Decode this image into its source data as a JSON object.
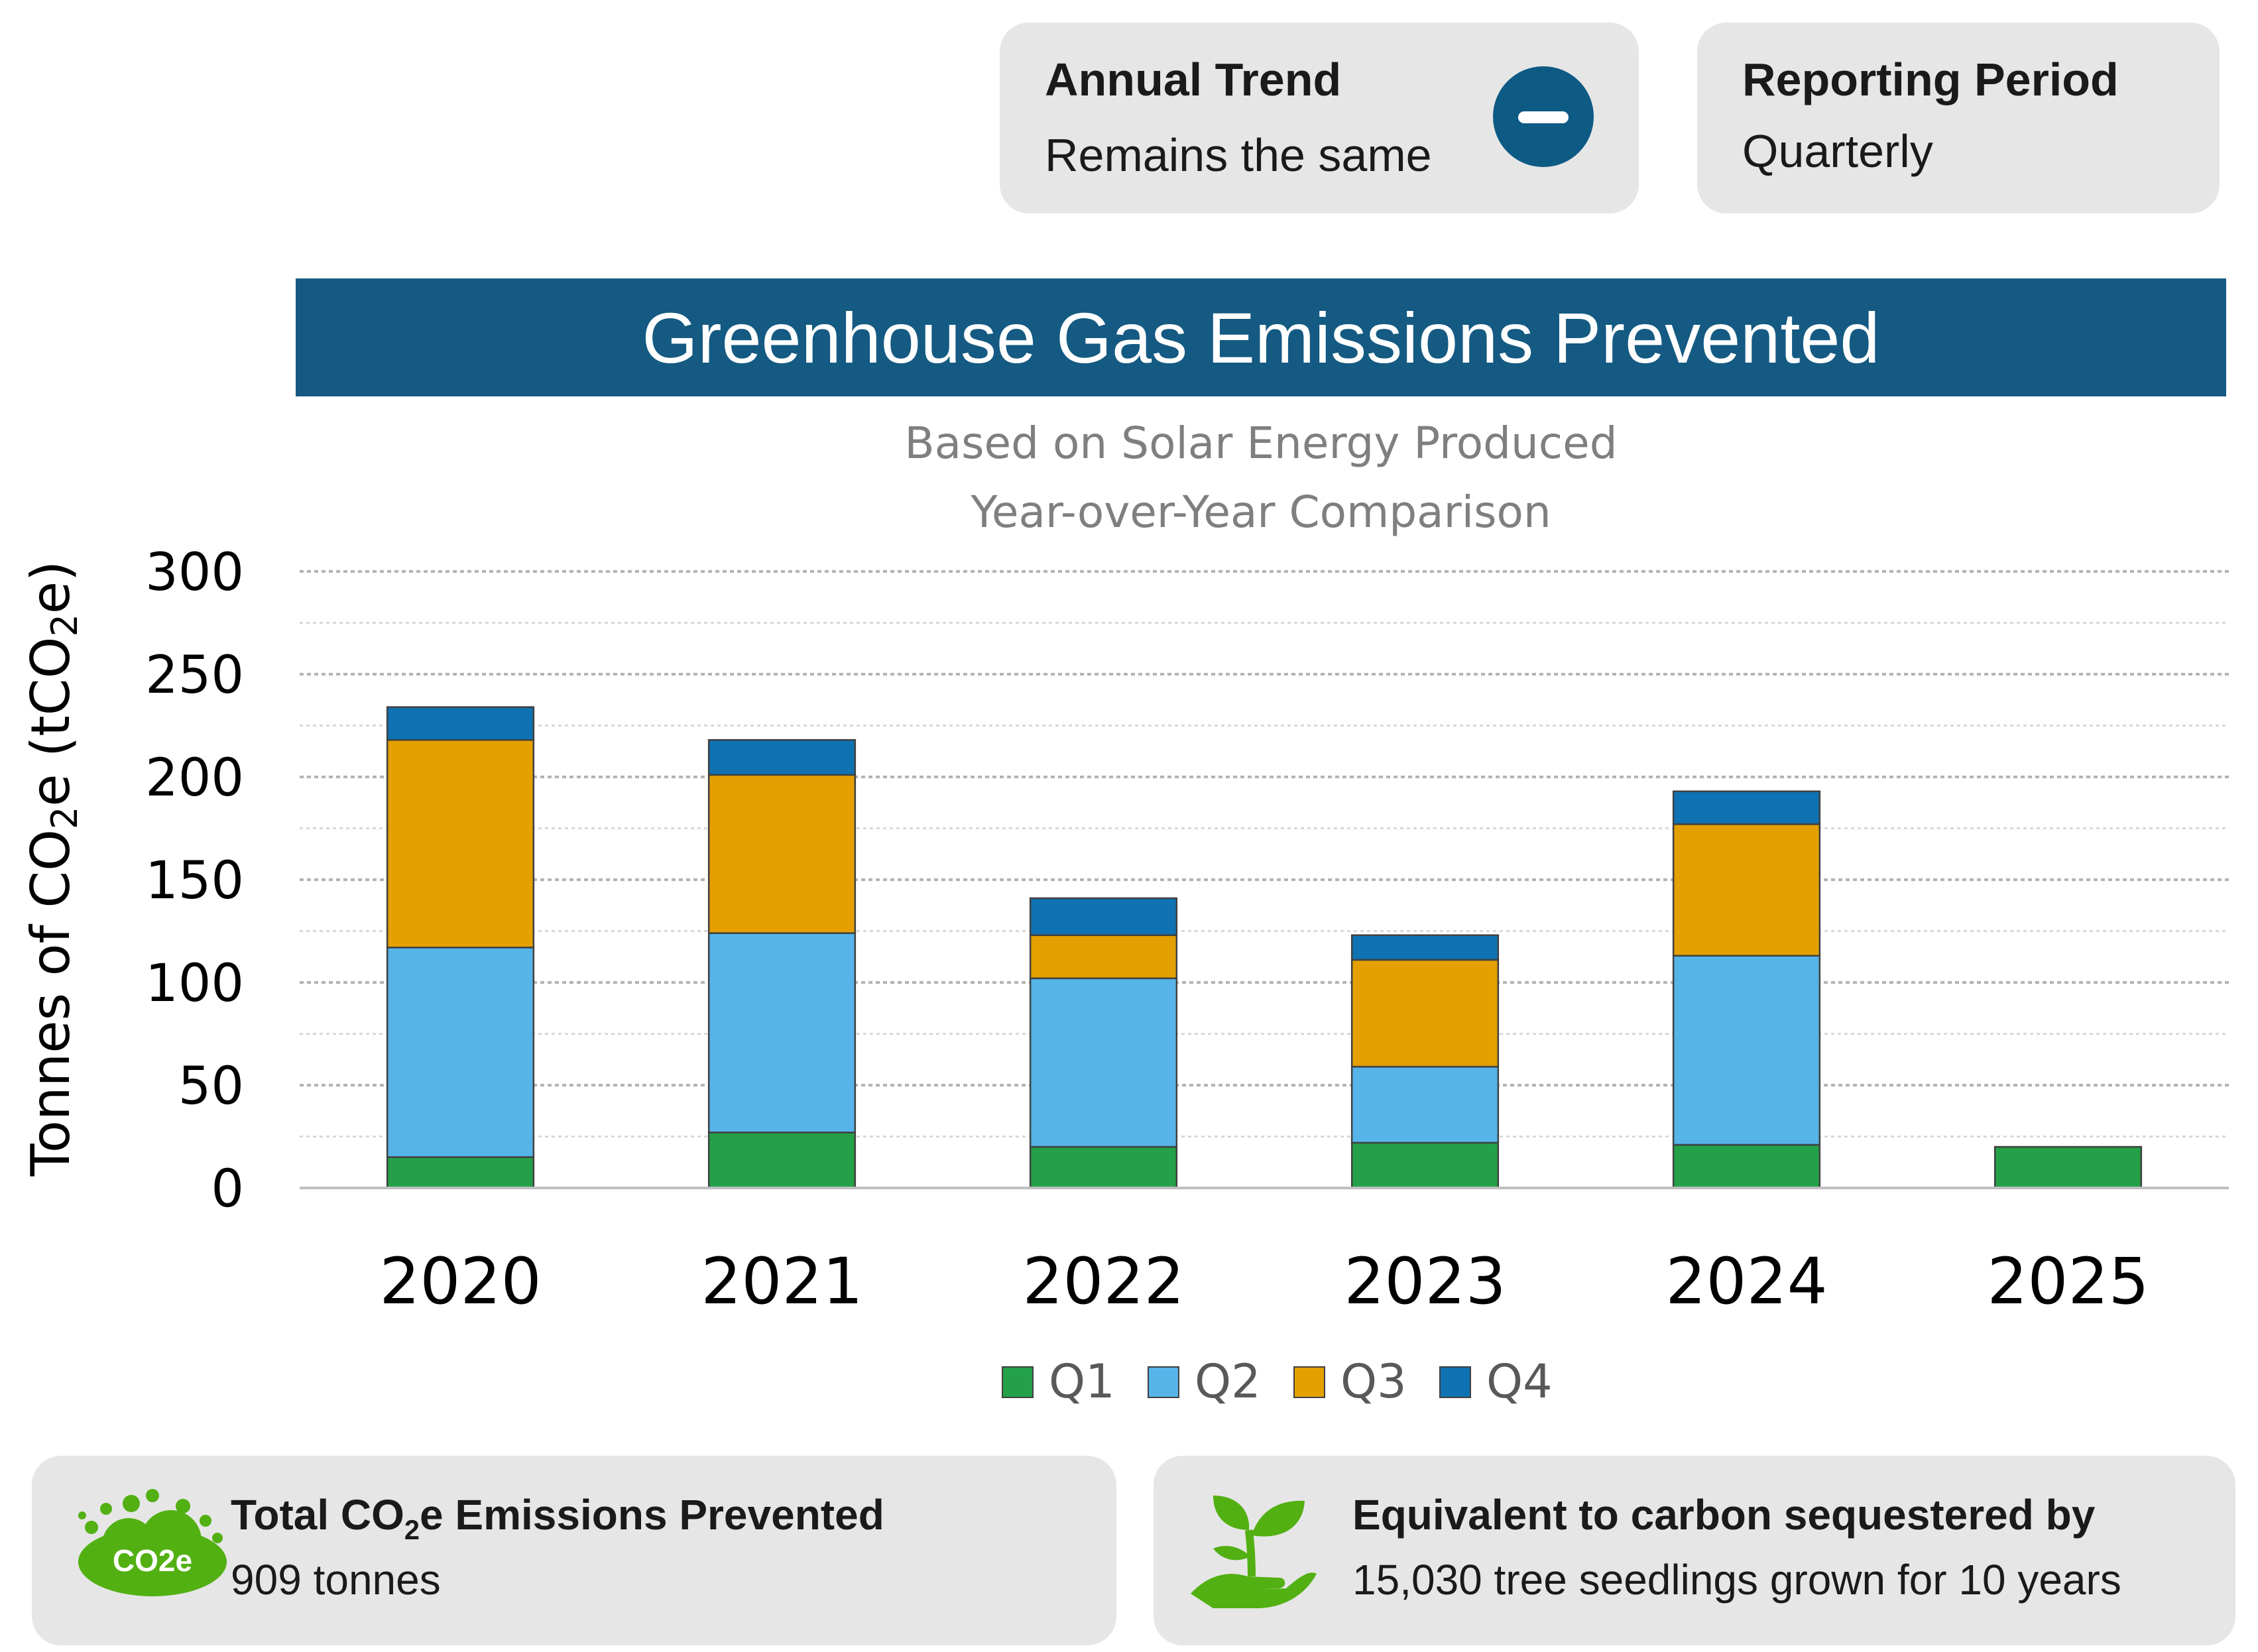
{
  "trend_card": {
    "label": "Annual Trend",
    "value": "Remains the same",
    "icon": "minus-circle-icon",
    "icon_color": "#0d5a84"
  },
  "period_card": {
    "label": "Reporting Period",
    "value": "Quarterly"
  },
  "total_card": {
    "label_pre": "Total CO",
    "label_sub": "2",
    "label_post": "e Emissions Prevented",
    "value": "909 tonnes",
    "icon": "co2e-cloud-icon",
    "icon_text": "CO2e",
    "icon_color": "#52b012"
  },
  "equiv_card": {
    "label": "Equivalent to carbon sequestered by",
    "value": "15,030 tree seedlings grown for 10 years",
    "icon": "seedling-hand-icon",
    "icon_color": "#52b012"
  },
  "colors": {
    "banner": "#145a82",
    "Q1": "#24a148",
    "Q2": "#56b4e9",
    "Q3": "#e4a000",
    "Q4": "#0f72b2"
  },
  "chart_data": {
    "type": "bar",
    "stacked": true,
    "title": "Greenhouse Gas Emissions Prevented",
    "subtitle": [
      "Based on Solar Energy Produced",
      "Year-over-Year Comparison"
    ],
    "ylabel": {
      "pre": "Tonnes of CO",
      "sub1": "2",
      "mid": "e (tCO",
      "sub2": "2",
      "post": "e)"
    },
    "xlabel": "",
    "categories": [
      "2020",
      "2021",
      "2022",
      "2023",
      "2024",
      "2025"
    ],
    "ylim": [
      0,
      300
    ],
    "yticks": [
      0,
      50,
      100,
      150,
      200,
      250,
      300
    ],
    "grid": true,
    "legend_position": "bottom",
    "series": [
      {
        "name": "Q1",
        "values": [
          15,
          27,
          20,
          22,
          21,
          20
        ]
      },
      {
        "name": "Q2",
        "values": [
          102,
          97,
          82,
          37,
          92,
          0
        ]
      },
      {
        "name": "Q3",
        "values": [
          101,
          77,
          21,
          52,
          64,
          0
        ]
      },
      {
        "name": "Q4",
        "values": [
          16,
          17,
          18,
          12,
          16,
          0
        ]
      }
    ]
  }
}
